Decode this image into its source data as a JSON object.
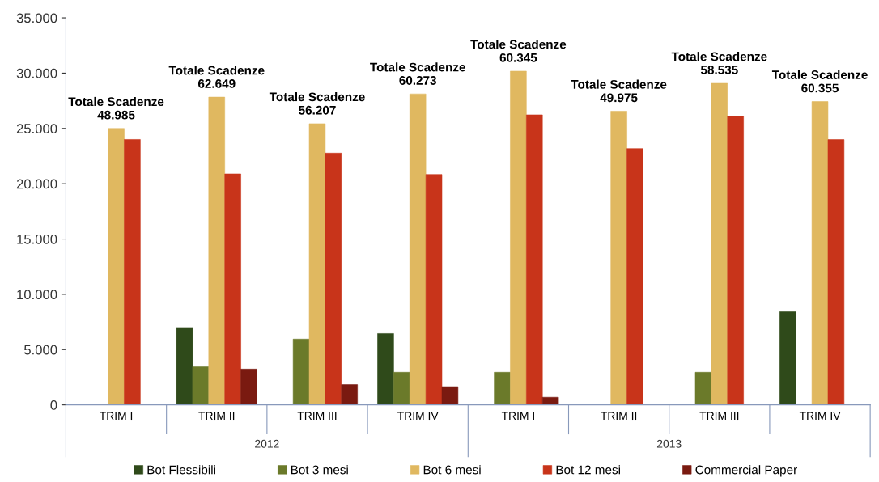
{
  "chart_data": {
    "type": "bar",
    "categories": [
      "TRIM I",
      "TRIM II",
      "TRIM III",
      "TRIM IV",
      "TRIM I",
      "TRIM II",
      "TRIM III",
      "TRIM IV"
    ],
    "series": [
      {
        "name": "Bot Flessibili",
        "color": "#2f4a1a",
        "values": [
          null,
          7000,
          null,
          6450,
          null,
          null,
          null,
          8420
        ]
      },
      {
        "name": "Bot 3 mesi",
        "color": "#6b7a2a",
        "values": [
          null,
          3450,
          5950,
          2950,
          2950,
          null,
          2950,
          null
        ]
      },
      {
        "name": "Bot 6 mesi",
        "color": "#e0b860",
        "values": [
          25000,
          27830,
          25430,
          28120,
          30180,
          26560,
          29080,
          27430
        ]
      },
      {
        "name": "Bot 12 mesi",
        "color": "#c8341a",
        "values": [
          24000,
          20890,
          22770,
          20840,
          26230,
          23180,
          26080,
          23990
        ]
      },
      {
        "name": "Commercial Paper",
        "color": "#7a1a10",
        "values": [
          null,
          3240,
          1830,
          1650,
          690,
          null,
          null,
          null
        ]
      }
    ],
    "ylim": [
      0,
      35000
    ],
    "yticks": [
      {
        "value": 0,
        "label": "0"
      },
      {
        "value": 5000,
        "label": "5.000"
      },
      {
        "value": 10000,
        "label": "10.000"
      },
      {
        "value": 15000,
        "label": "15.000"
      },
      {
        "value": 20000,
        "label": "20.000"
      },
      {
        "value": 25000,
        "label": "25.000"
      },
      {
        "value": 30000,
        "label": "30.000"
      },
      {
        "value": 35000,
        "label": "35.000"
      }
    ],
    "annotations": [
      "Totale Scadenze\n48.985",
      "Totale Scadenze\n62.649",
      "Totale Scadenze\n56.207",
      "Totale Scadenze\n60.273",
      "Totale Scadenze\n60.345",
      "Totale Scadenze\n49.975",
      "Totale Scadenze\n58.535",
      "Totale Scadenze\n60.355",
      "2012",
      "2013"
    ],
    "grid": false,
    "legend": "bottom"
  }
}
